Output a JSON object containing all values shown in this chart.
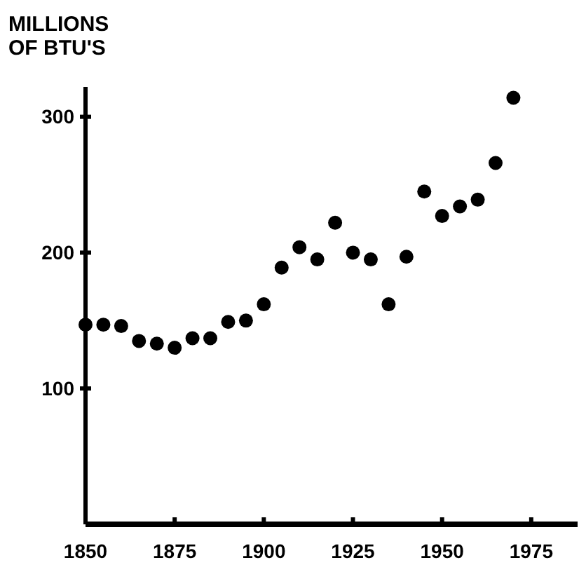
{
  "chart_data": {
    "type": "scatter",
    "ylabel": "MILLIONS OF BTU'S",
    "x": [
      1850,
      1855,
      1860,
      1865,
      1870,
      1875,
      1880,
      1885,
      1890,
      1895,
      1900,
      1905,
      1910,
      1915,
      1920,
      1925,
      1930,
      1935,
      1940,
      1945,
      1950,
      1955,
      1960,
      1965,
      1970
    ],
    "values": [
      147,
      147,
      146,
      135,
      133,
      130,
      137,
      137,
      149,
      150,
      162,
      189,
      204,
      195,
      222,
      200,
      195,
      162,
      197,
      245,
      227,
      234,
      239,
      266,
      314
    ],
    "color": "#000000",
    "marker": "circle",
    "xlim": [
      1850,
      1988
    ],
    "xticks": [
      1850,
      1875,
      1900,
      1925,
      1950,
      1975
    ],
    "ylim": [
      0,
      322
    ],
    "yticks": [
      100,
      200,
      300
    ],
    "grid": false
  }
}
